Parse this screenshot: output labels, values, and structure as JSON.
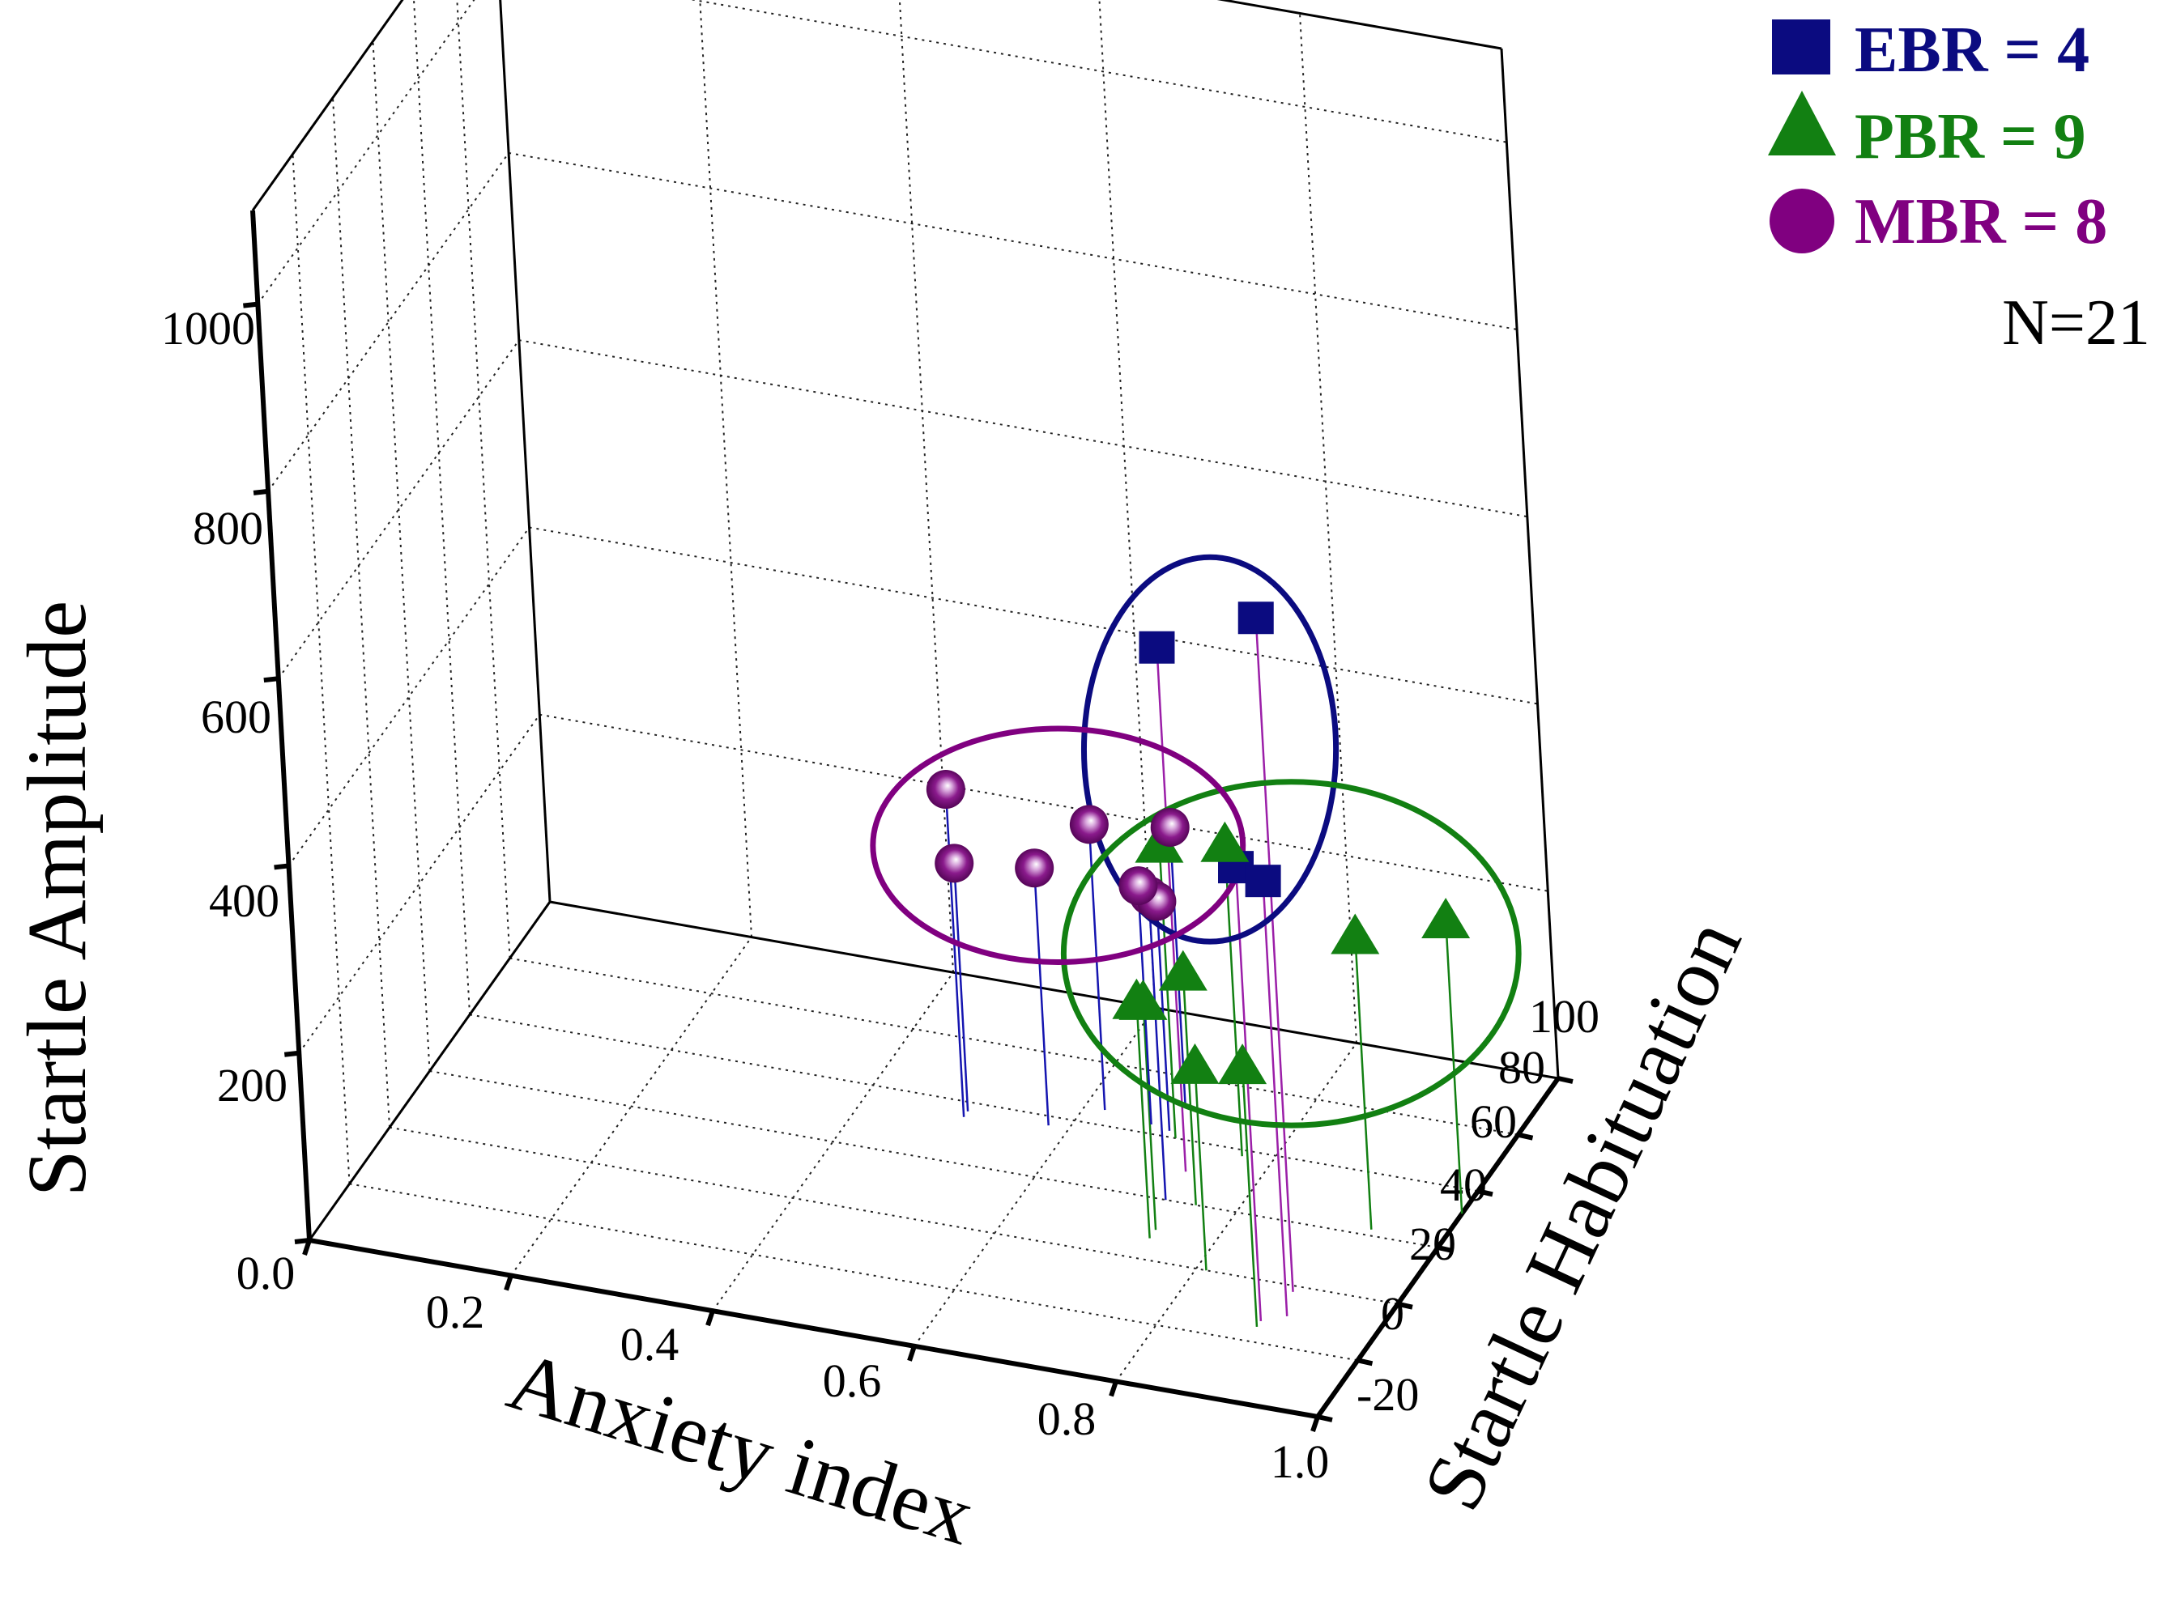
{
  "chart_data": {
    "type": "scatter3d",
    "title": "",
    "xlabel": "Anxiety index",
    "ylabel": "Startle Habituation",
    "zlabel": "Startle Amplitude",
    "xlim": [
      0.0,
      1.0
    ],
    "ylim": [
      -20,
      100
    ],
    "zlim": [
      0,
      1100
    ],
    "xticks": [
      "0.2",
      "0.4",
      "0.6",
      "0.8",
      "1.0"
    ],
    "xticks_origin": "0.0",
    "yticks": [
      "-20",
      "0",
      "20",
      "40",
      "60",
      "80",
      "100"
    ],
    "zticks": [
      "200",
      "400",
      "600",
      "800",
      "1000"
    ],
    "grid": true,
    "legend_position": "top-right",
    "note": "N=21",
    "series": [
      {
        "name": "EBR = 4",
        "marker": "square",
        "color": "#0b0b80",
        "stem_color": "#9b1fa8",
        "points": [
          {
            "x": 0.9,
            "y": 18,
            "z": 720
          },
          {
            "x": 0.73,
            "y": 50,
            "z": 560
          },
          {
            "x": 0.89,
            "y": 7,
            "z": 485
          },
          {
            "x": 0.91,
            "y": 10,
            "z": 465
          }
        ]
      },
      {
        "name": "PBR = 9",
        "marker": "triangle",
        "color": "#128012",
        "stem_color": "#128012",
        "points": [
          {
            "x": 0.7,
            "y": 60,
            "z": 315
          },
          {
            "x": 0.77,
            "y": 58,
            "z": 335
          },
          {
            "x": 0.93,
            "y": 42,
            "z": 315
          },
          {
            "x": 1.0,
            "y": 52,
            "z": 315
          },
          {
            "x": 0.89,
            "y": 5,
            "z": 280
          },
          {
            "x": 0.76,
            "y": 40,
            "z": 250
          },
          {
            "x": 0.74,
            "y": 30,
            "z": 245
          },
          {
            "x": 0.74,
            "y": 27,
            "z": 255
          },
          {
            "x": 0.81,
            "y": 20,
            "z": 220
          }
        ]
      },
      {
        "name": "MBR = 8",
        "marker": "sphere",
        "color": "#800080",
        "stem_color": "#1515b0",
        "points": [
          {
            "x": 0.5,
            "y": 55,
            "z": 350
          },
          {
            "x": 0.5,
            "y": 57,
            "z": 265
          },
          {
            "x": 0.58,
            "y": 57,
            "z": 275
          },
          {
            "x": 0.62,
            "y": 65,
            "z": 305
          },
          {
            "x": 0.69,
            "y": 70,
            "z": 300
          },
          {
            "x": 0.73,
            "y": 40,
            "z": 325
          },
          {
            "x": 0.69,
            "y": 62,
            "z": 245
          },
          {
            "x": 0.67,
            "y": 63,
            "z": 255
          }
        ]
      }
    ],
    "ellipses": [
      {
        "name": "EBR cluster",
        "color": "#0b0b80"
      },
      {
        "name": "MBR cluster",
        "color": "#800080"
      },
      {
        "name": "PBR cluster",
        "color": "#128012"
      }
    ]
  },
  "legend": {
    "items": [
      {
        "label": "EBR = 4",
        "marker": "square",
        "color": "#0b0b80"
      },
      {
        "label": "PBR = 9",
        "marker": "triangle",
        "color": "#128012"
      },
      {
        "label": "MBR = 8",
        "marker": "circle",
        "color": "#800080"
      }
    ],
    "note": "N=21"
  }
}
